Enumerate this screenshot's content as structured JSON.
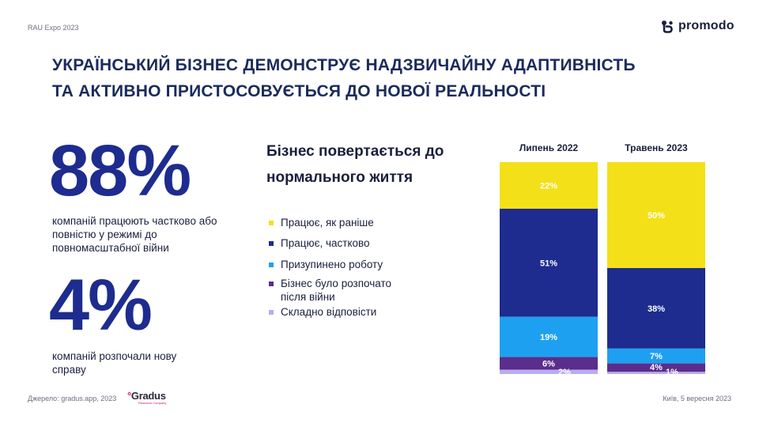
{
  "header": {
    "event": "RAU Expo 2023",
    "brand": "promodo"
  },
  "title_lines": [
    "УКРАЇНСЬКИЙ БІЗНЕС ДЕМОНСТРУЄ НАДЗВИЧАЙНУ АДАПТИВНІСТЬ",
    "ТА АКТИВНО ПРИСТОСОВУЄТЬСЯ ДО НОВОЇ РЕАЛЬНОСТІ"
  ],
  "stats": [
    {
      "value": "88%",
      "description": "компаній працюють частково або повністю у режимі до повномасштабної війни"
    },
    {
      "value": "4%",
      "description": "компаній розпочали нову справу"
    }
  ],
  "chart_data": {
    "type": "bar",
    "stacked": true,
    "title": "Бізнес повертається до нормального життя",
    "categories": [
      "Липень 2022",
      "Травень 2023"
    ],
    "ylim": [
      0,
      100
    ],
    "series": [
      {
        "name": "Працює, як раніше",
        "color": "#f4e018",
        "values": [
          22,
          50
        ],
        "labels": [
          "22%",
          "50%"
        ],
        "label_color": "#ffffff"
      },
      {
        "name": "Працює, частково",
        "color": "#1d2c8e",
        "values": [
          51,
          38
        ],
        "labels": [
          "51%",
          "38%"
        ],
        "label_color": "#ffffff"
      },
      {
        "name": "Призупинено роботу",
        "color": "#1ea0f0",
        "values": [
          19,
          7
        ],
        "labels": [
          "19%",
          "7%"
        ],
        "label_color": "#ffffff"
      },
      {
        "name": "Бізнес було розпочато після війни",
        "color": "#5b2d8c",
        "values": [
          6,
          4
        ],
        "labels": [
          "6%",
          "4%"
        ],
        "label_color": "#ffffff"
      },
      {
        "name": "Складно відповісти",
        "color": "#b9acef",
        "values": [
          2,
          1
        ],
        "labels": [
          "2%",
          "1%"
        ],
        "label_color": "#ffffff"
      }
    ]
  },
  "legend_lines": [
    [
      "Працює, як раніше"
    ],
    [
      "Працює, частково"
    ],
    [
      "Призупинено роботу"
    ],
    [
      "Бізнес було розпочато",
      "після війни"
    ],
    [
      "Складно відповісти"
    ]
  ],
  "footer": {
    "source": "Джерело: gradus.app, 2023",
    "gradus_logo": "Gradus",
    "gradus_sub": "Research Company",
    "date": "Київ, 5 вересня 2023"
  }
}
